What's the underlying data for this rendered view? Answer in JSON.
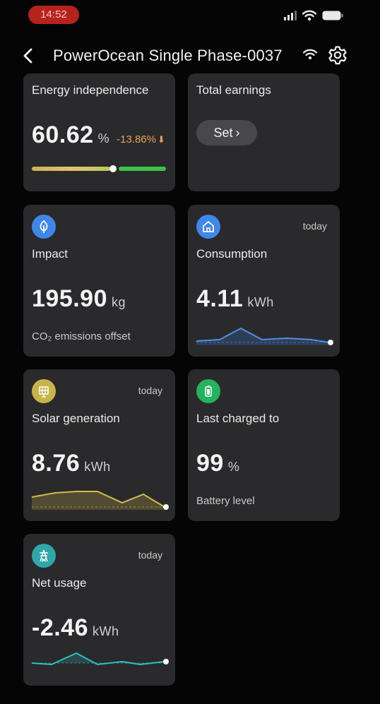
{
  "status": {
    "time": "14:52"
  },
  "header": {
    "title": "PowerOcean Single Phase-0037"
  },
  "energy_independence": {
    "label": "Energy independence",
    "value": "60.62",
    "unit": "%",
    "delta": "-13.86%",
    "level": 0.6062
  },
  "total_earnings": {
    "label": "Total earnings",
    "button": "Set"
  },
  "impact": {
    "label": "Impact",
    "value": "195.90",
    "unit": "kg",
    "sub": "CO₂ emissions offset",
    "icon": "leaf-icon"
  },
  "consumption": {
    "label": "Consumption",
    "today": "today",
    "value": "4.11",
    "unit": "kWh",
    "icon": "home-icon"
  },
  "solar": {
    "label": "Solar generation",
    "today": "today",
    "value": "8.76",
    "unit": "kWh",
    "icon": "solar-panel-icon"
  },
  "battery": {
    "label": "Last charged to",
    "value": "99",
    "unit": "%",
    "sub": "Battery level",
    "icon": "battery-icon"
  },
  "net_usage": {
    "label": "Net usage",
    "today": "today",
    "value": "-2.46",
    "unit": "kWh",
    "icon": "power-tower-icon"
  },
  "colors": {
    "accent_blue": "#3f87e8",
    "solar_yellow": "#c9b448",
    "battery_green": "#23b25e",
    "net_teal": "#2fa6a8",
    "delta_orange": "#e8a35a"
  }
}
